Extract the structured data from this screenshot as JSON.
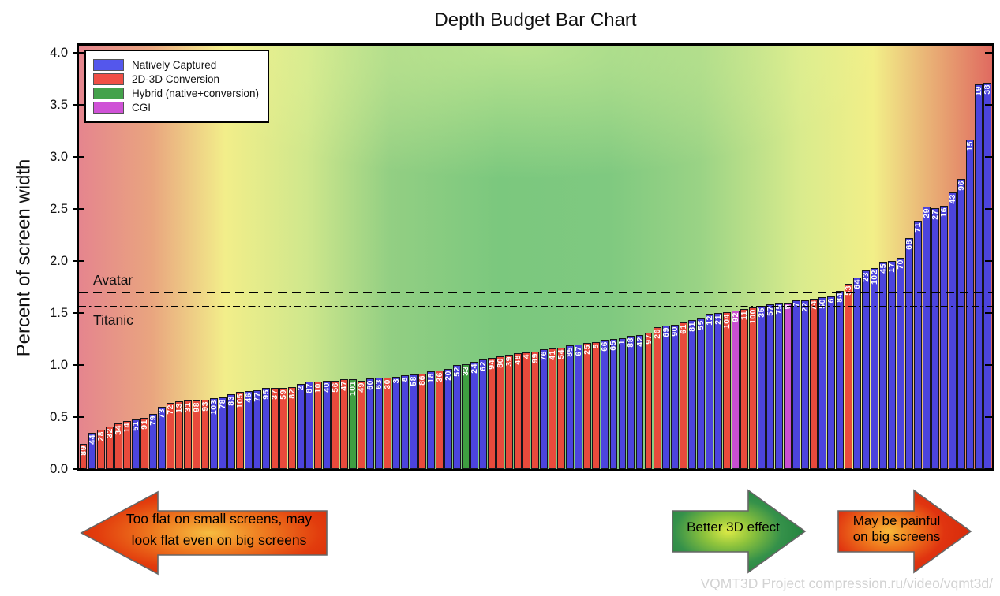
{
  "title": "Depth Budget Bar Chart",
  "watermark": "VQMT3D Project compression.ru/video/vqmt3d/",
  "axes": {
    "ylabel": "Percent of screen width",
    "yticks": [
      "0.0",
      "0.5",
      "1.0",
      "1.5",
      "2.0",
      "2.5",
      "3.0",
      "3.5",
      "4.0"
    ]
  },
  "arrows": {
    "left": {
      "line1": "Too flat on small screens, may",
      "line2": "look flat even on big screens"
    },
    "middle": {
      "line1": "Better 3D effect"
    },
    "right": {
      "line1": "May be painful",
      "line2": "on big screens"
    }
  },
  "chart_data": {
    "type": "bar",
    "title": "Depth Budget Bar Chart",
    "xlabel": "",
    "ylabel": "Percent of screen width",
    "ylim": [
      0,
      4.07
    ],
    "grid": false,
    "legend_position": "upper left",
    "legend": [
      {
        "key": "native",
        "label": "Natively Captured",
        "color": "#5457ec"
      },
      {
        "key": "conversion",
        "label": "2D-3D Conversion",
        "color": "#f04f45"
      },
      {
        "key": "hybrid",
        "label": "Hybrid (native+conversion)",
        "color": "#44a24b"
      },
      {
        "key": "cgi",
        "label": "CGI",
        "color": "#cf52d6"
      }
    ],
    "category_colors": {
      "native": "#4c44dd",
      "conversion": "#e84a3c",
      "hybrid": "#3f9e41",
      "cgi": "#c94fd0"
    },
    "reference_lines": [
      {
        "label": "Avatar",
        "value": 1.69,
        "style": "dashed",
        "label_side": "above"
      },
      {
        "label": "Titanic",
        "value": 1.55,
        "style": "dashdot",
        "label_side": "below"
      }
    ],
    "bars": [
      {
        "id": "89",
        "category": "conversion",
        "value": 0.24
      },
      {
        "id": "44",
        "category": "native",
        "value": 0.35
      },
      {
        "id": "28",
        "category": "conversion",
        "value": 0.38
      },
      {
        "id": "32",
        "category": "conversion",
        "value": 0.41
      },
      {
        "id": "34",
        "category": "conversion",
        "value": 0.44
      },
      {
        "id": "14",
        "category": "conversion",
        "value": 0.46
      },
      {
        "id": "51",
        "category": "native",
        "value": 0.48
      },
      {
        "id": "91",
        "category": "conversion",
        "value": 0.49
      },
      {
        "id": "79",
        "category": "native",
        "value": 0.53
      },
      {
        "id": "73",
        "category": "native",
        "value": 0.6
      },
      {
        "id": "72",
        "category": "conversion",
        "value": 0.64
      },
      {
        "id": "13",
        "category": "conversion",
        "value": 0.65
      },
      {
        "id": "31",
        "category": "conversion",
        "value": 0.66
      },
      {
        "id": "98",
        "category": "conversion",
        "value": 0.66
      },
      {
        "id": "93",
        "category": "conversion",
        "value": 0.67
      },
      {
        "id": "103",
        "category": "native",
        "value": 0.68
      },
      {
        "id": "78",
        "category": "native",
        "value": 0.69
      },
      {
        "id": "83",
        "category": "native",
        "value": 0.72
      },
      {
        "id": "105",
        "category": "conversion",
        "value": 0.74
      },
      {
        "id": "46",
        "category": "native",
        "value": 0.75
      },
      {
        "id": "77",
        "category": "native",
        "value": 0.76
      },
      {
        "id": "95",
        "category": "native",
        "value": 0.78
      },
      {
        "id": "37",
        "category": "conversion",
        "value": 0.78
      },
      {
        "id": "59",
        "category": "conversion",
        "value": 0.78
      },
      {
        "id": "82",
        "category": "conversion",
        "value": 0.79
      },
      {
        "id": "2",
        "category": "native",
        "value": 0.82
      },
      {
        "id": "87",
        "category": "native",
        "value": 0.84
      },
      {
        "id": "10",
        "category": "conversion",
        "value": 0.84
      },
      {
        "id": "40",
        "category": "native",
        "value": 0.85
      },
      {
        "id": "56",
        "category": "conversion",
        "value": 0.85
      },
      {
        "id": "47",
        "category": "conversion",
        "value": 0.86
      },
      {
        "id": "101",
        "category": "hybrid",
        "value": 0.86
      },
      {
        "id": "49",
        "category": "conversion",
        "value": 0.85
      },
      {
        "id": "60",
        "category": "native",
        "value": 0.87
      },
      {
        "id": "63",
        "category": "native",
        "value": 0.88
      },
      {
        "id": "30",
        "category": "conversion",
        "value": 0.88
      },
      {
        "id": "3",
        "category": "native",
        "value": 0.89
      },
      {
        "id": "8",
        "category": "native",
        "value": 0.9
      },
      {
        "id": "58",
        "category": "native",
        "value": 0.91
      },
      {
        "id": "86",
        "category": "conversion",
        "value": 0.92
      },
      {
        "id": "18",
        "category": "native",
        "value": 0.94
      },
      {
        "id": "36",
        "category": "conversion",
        "value": 0.95
      },
      {
        "id": "20",
        "category": "native",
        "value": 0.96
      },
      {
        "id": "52",
        "category": "native",
        "value": 1.0
      },
      {
        "id": "33",
        "category": "hybrid",
        "value": 1.01
      },
      {
        "id": "24",
        "category": "native",
        "value": 1.03
      },
      {
        "id": "62",
        "category": "native",
        "value": 1.05
      },
      {
        "id": "94",
        "category": "conversion",
        "value": 1.07
      },
      {
        "id": "80",
        "category": "conversion",
        "value": 1.08
      },
      {
        "id": "39",
        "category": "conversion",
        "value": 1.1
      },
      {
        "id": "48",
        "category": "conversion",
        "value": 1.11
      },
      {
        "id": "4",
        "category": "conversion",
        "value": 1.12
      },
      {
        "id": "99",
        "category": "conversion",
        "value": 1.13
      },
      {
        "id": "76",
        "category": "native",
        "value": 1.15
      },
      {
        "id": "41",
        "category": "conversion",
        "value": 1.16
      },
      {
        "id": "54",
        "category": "conversion",
        "value": 1.17
      },
      {
        "id": "85",
        "category": "native",
        "value": 1.19
      },
      {
        "id": "67",
        "category": "native",
        "value": 1.2
      },
      {
        "id": "25",
        "category": "conversion",
        "value": 1.21
      },
      {
        "id": "5",
        "category": "conversion",
        "value": 1.22
      },
      {
        "id": "66",
        "category": "native",
        "value": 1.24
      },
      {
        "id": "65",
        "category": "native",
        "value": 1.25
      },
      {
        "id": "1",
        "category": "native",
        "value": 1.26
      },
      {
        "id": "88",
        "category": "native",
        "value": 1.28
      },
      {
        "id": "42",
        "category": "native",
        "value": 1.29
      },
      {
        "id": "97",
        "category": "conversion",
        "value": 1.31
      },
      {
        "id": "26",
        "category": "conversion",
        "value": 1.36
      },
      {
        "id": "69",
        "category": "native",
        "value": 1.38
      },
      {
        "id": "90",
        "category": "native",
        "value": 1.39
      },
      {
        "id": "61",
        "category": "conversion",
        "value": 1.41
      },
      {
        "id": "81",
        "category": "native",
        "value": 1.43
      },
      {
        "id": "55",
        "category": "native",
        "value": 1.45
      },
      {
        "id": "12",
        "category": "native",
        "value": 1.49
      },
      {
        "id": "21",
        "category": "native",
        "value": 1.5
      },
      {
        "id": "104",
        "category": "conversion",
        "value": 1.51
      },
      {
        "id": "92",
        "category": "cgi",
        "value": 1.52
      },
      {
        "id": "11",
        "category": "conversion",
        "value": 1.54
      },
      {
        "id": "100",
        "category": "conversion",
        "value": 1.55
      },
      {
        "id": "35",
        "category": "native",
        "value": 1.57
      },
      {
        "id": "57",
        "category": "native",
        "value": 1.58
      },
      {
        "id": "75",
        "category": "native",
        "value": 1.6
      },
      {
        "id": "9",
        "category": "cgi",
        "value": 1.6
      },
      {
        "id": "7",
        "category": "native",
        "value": 1.62
      },
      {
        "id": "22",
        "category": "native",
        "value": 1.62
      },
      {
        "id": "74",
        "category": "conversion",
        "value": 1.64
      },
      {
        "id": "50",
        "category": "native",
        "value": 1.65
      },
      {
        "id": "6",
        "category": "native",
        "value": 1.66
      },
      {
        "id": "84",
        "category": "native",
        "value": 1.71
      },
      {
        "id": "53",
        "category": "conversion",
        "value": 1.78
      },
      {
        "id": "64",
        "category": "native",
        "value": 1.84
      },
      {
        "id": "23",
        "category": "native",
        "value": 1.91
      },
      {
        "id": "102",
        "category": "native",
        "value": 1.93
      },
      {
        "id": "45",
        "category": "native",
        "value": 1.99
      },
      {
        "id": "17",
        "category": "native",
        "value": 2.0
      },
      {
        "id": "70",
        "category": "native",
        "value": 2.03
      },
      {
        "id": "68",
        "category": "native",
        "value": 2.22
      },
      {
        "id": "71",
        "category": "native",
        "value": 2.39
      },
      {
        "id": "29",
        "category": "native",
        "value": 2.52
      },
      {
        "id": "27",
        "category": "native",
        "value": 2.51
      },
      {
        "id": "16",
        "category": "native",
        "value": 2.53
      },
      {
        "id": "43",
        "category": "native",
        "value": 2.66
      },
      {
        "id": "96",
        "category": "native",
        "value": 2.79
      },
      {
        "id": "15",
        "category": "native",
        "value": 3.17
      },
      {
        "id": "19",
        "category": "native",
        "value": 3.7
      },
      {
        "id": "38",
        "category": "native",
        "value": 3.71
      }
    ]
  }
}
